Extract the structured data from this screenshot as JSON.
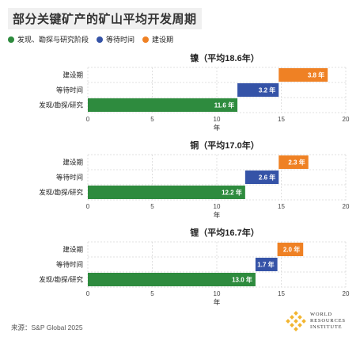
{
  "title": "部分关键矿产的矿山平均开发周期",
  "legend": [
    {
      "label": "发现、勘探与研究阶段",
      "color": "#2e8b3e"
    },
    {
      "label": "等待时间",
      "color": "#3553a7"
    },
    {
      "label": "建设期",
      "color": "#ef8124"
    }
  ],
  "chart_data": [
    {
      "type": "bar",
      "title": "镍（平均18.6年）",
      "categories": [
        "建设期",
        "等待时间",
        "发现/勘探/研究"
      ],
      "segments": [
        {
          "category": "发现/勘探/研究",
          "start": 0,
          "value": 11.6,
          "label": "11.6 年",
          "color": "#2e8b3e"
        },
        {
          "category": "等待时间",
          "start": 11.6,
          "value": 3.2,
          "label": "3.2 年",
          "color": "#3553a7"
        },
        {
          "category": "建设期",
          "start": 14.8,
          "value": 3.8,
          "label": "3.8 年",
          "color": "#ef8124"
        }
      ],
      "xlabel": "年",
      "xlim": [
        0,
        20
      ],
      "xticks": [
        0,
        5,
        10,
        15,
        20
      ]
    },
    {
      "type": "bar",
      "title": "铜（平均17.0年）",
      "categories": [
        "建设期",
        "等待时间",
        "发现/勘探/研究"
      ],
      "segments": [
        {
          "category": "发现/勘探/研究",
          "start": 0,
          "value": 12.2,
          "label": "12.2 年",
          "color": "#2e8b3e"
        },
        {
          "category": "等待时间",
          "start": 12.2,
          "value": 2.6,
          "label": "2.6 年",
          "color": "#3553a7"
        },
        {
          "category": "建设期",
          "start": 14.8,
          "value": 2.3,
          "label": "2.3 年",
          "color": "#ef8124"
        }
      ],
      "xlabel": "年",
      "xlim": [
        0,
        20
      ],
      "xticks": [
        0,
        5,
        10,
        15,
        20
      ]
    },
    {
      "type": "bar",
      "title": "锂（平均16.7年）",
      "categories": [
        "建设期",
        "等待时间",
        "发现/勘探/研究"
      ],
      "segments": [
        {
          "category": "发现/勘探/研究",
          "start": 0,
          "value": 13.0,
          "label": "13.0 年",
          "color": "#2e8b3e"
        },
        {
          "category": "等待时间",
          "start": 13.0,
          "value": 1.7,
          "label": "1.7 年",
          "color": "#3553a7"
        },
        {
          "category": "建设期",
          "start": 14.7,
          "value": 2.0,
          "label": "2.0 年",
          "color": "#ef8124"
        }
      ],
      "xlabel": "年",
      "xlim": [
        0,
        20
      ],
      "xticks": [
        0,
        5,
        10,
        15,
        20
      ]
    }
  ],
  "source": "来源：S&P Global 2025",
  "logo": {
    "line1": "WORLD",
    "line2": "RESOURCES",
    "line3": "INSTITUTE",
    "color": "#f2b531"
  }
}
